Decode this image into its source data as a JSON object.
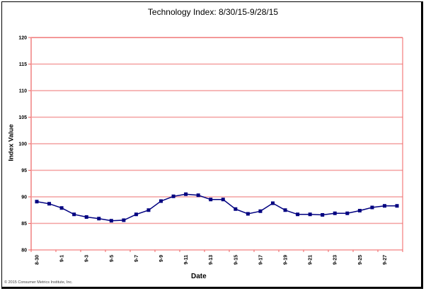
{
  "chart_data": {
    "type": "line",
    "title": "Technology Index: 8/30/15-9/28/15",
    "xlabel": "Date",
    "ylabel": "Index Value",
    "ylim": [
      80,
      120
    ],
    "yticks": [
      80,
      85,
      90,
      95,
      100,
      105,
      110,
      115,
      120
    ],
    "grid": true,
    "legend": null,
    "x": [
      "8-30",
      "8-31",
      "9-1",
      "9-2",
      "9-3",
      "9-4",
      "9-5",
      "9-6",
      "9-7",
      "9-8",
      "9-9",
      "9-10",
      "9-11",
      "9-12",
      "9-13",
      "9-14",
      "9-15",
      "9-16",
      "9-17",
      "9-18",
      "9-19",
      "9-20",
      "9-21",
      "9-22",
      "9-23",
      "9-24",
      "9-25",
      "9-26",
      "9-27",
      "9-28"
    ],
    "xtick_labels": [
      "8-30",
      "9-1",
      "9-3",
      "9-5",
      "9-7",
      "9-9",
      "9-11",
      "9-13",
      "9-15",
      "9-17",
      "9-19",
      "9-21",
      "9-23",
      "9-25",
      "9-27"
    ],
    "series": [
      {
        "name": "Technology Index",
        "color": "#000080",
        "values": [
          89.1,
          88.7,
          87.9,
          86.7,
          86.2,
          85.9,
          85.5,
          85.6,
          86.7,
          87.5,
          89.2,
          90.1,
          90.5,
          90.3,
          89.5,
          89.5,
          87.7,
          86.8,
          87.3,
          88.8,
          87.5,
          86.7,
          86.7,
          86.6,
          86.9,
          86.9,
          87.4,
          88.0,
          88.3,
          88.3
        ]
      }
    ]
  },
  "colors": {
    "gridline": "#f4a0a0",
    "axis": "#f06060",
    "series": "#000080"
  },
  "footer": {
    "copyright": "© 2015 Consumer Metrics Institute, Inc."
  }
}
